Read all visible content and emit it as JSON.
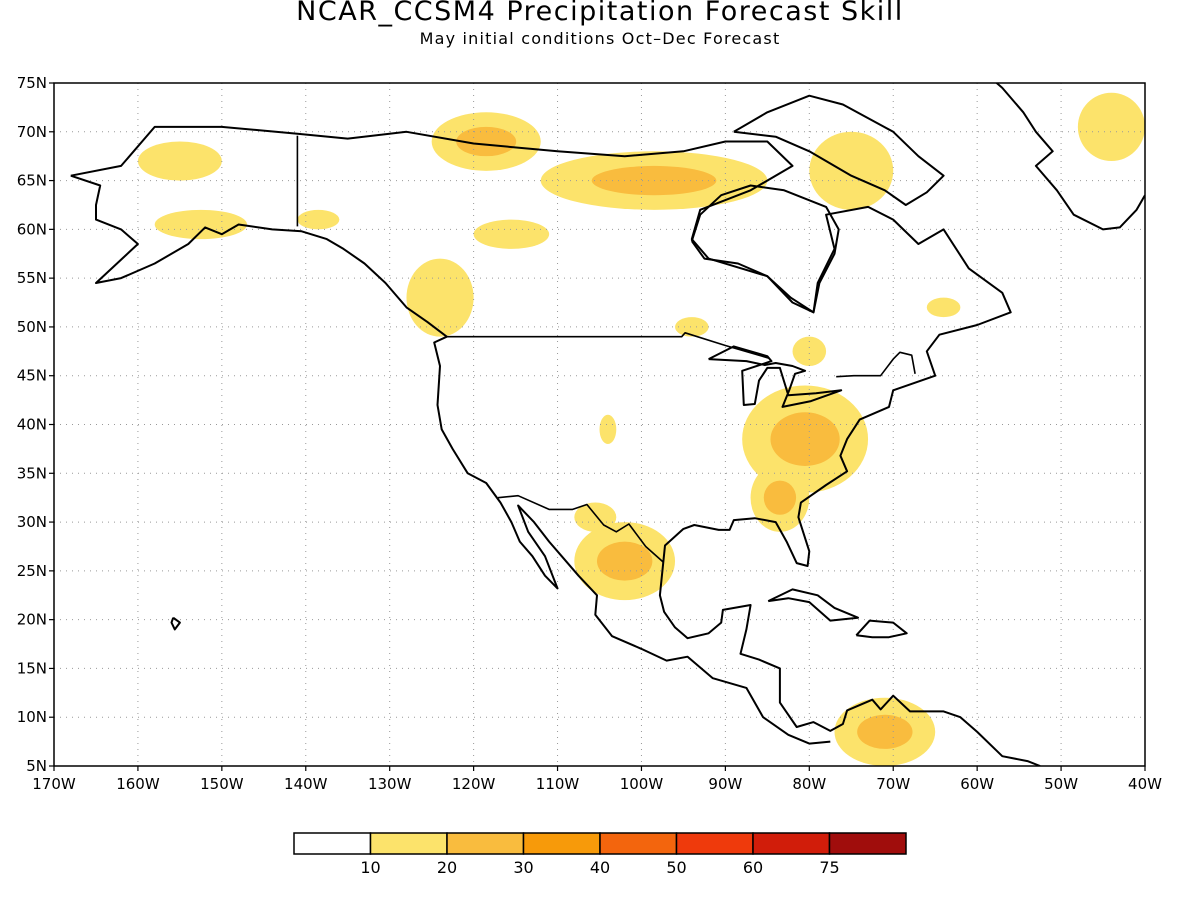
{
  "title": "NCAR_CCSM4 Precipitation Forecast Skill",
  "subtitle": "May initial conditions  Oct–Dec Forecast",
  "map": {
    "lon_range": [
      -170,
      -40
    ],
    "lat_range": [
      5,
      75
    ],
    "lon_ticks": [
      "170W",
      "160W",
      "150W",
      "140W",
      "130W",
      "120W",
      "110W",
      "100W",
      "90W",
      "80W",
      "70W",
      "60W",
      "50W",
      "40W"
    ],
    "lat_ticks": [
      "75N",
      "70N",
      "65N",
      "60N",
      "55N",
      "50N",
      "45N",
      "40N",
      "35N",
      "30N",
      "25N",
      "20N",
      "15N",
      "10N",
      "5N"
    ],
    "gridlines": "dotted",
    "legend_position": "bottom-center"
  },
  "colorbar": {
    "labels": [
      "10",
      "20",
      "30",
      "40",
      "50",
      "60",
      "75"
    ],
    "colors": [
      "#ffffff",
      "#fce36b",
      "#f9bc3e",
      "#f79a0a",
      "#f3650d",
      "#ef3a0c",
      "#d11d0a",
      "#a00d0c"
    ]
  },
  "skill_regions": [
    {
      "name": "eastern-us",
      "lon": [
        -88,
        -73
      ],
      "lat": [
        33,
        44
      ],
      "level": 2
    },
    {
      "name": "southeast-us",
      "lon": [
        -87,
        -80
      ],
      "lat": [
        29,
        36
      ],
      "level": 2
    },
    {
      "name": "northern-mexico",
      "lon": [
        -108,
        -96
      ],
      "lat": [
        22,
        30
      ],
      "level": 2
    },
    {
      "name": "arctic-canada",
      "lon": [
        -112,
        -85
      ],
      "lat": [
        62,
        68
      ],
      "level": 2
    },
    {
      "name": "greenland-east",
      "lon": [
        -48,
        -40
      ],
      "lat": [
        67,
        74
      ],
      "level": 1
    },
    {
      "name": "northern-south-america",
      "lon": [
        -77,
        -65
      ],
      "lat": [
        5,
        12
      ],
      "level": 2
    },
    {
      "name": "western-canada",
      "lon": [
        -128,
        -120
      ],
      "lat": [
        49,
        57
      ],
      "level": 1
    },
    {
      "name": "alaska-north",
      "lon": [
        -160,
        -150
      ],
      "lat": [
        65,
        69
      ],
      "level": 1
    },
    {
      "name": "alaska-south",
      "lon": [
        -158,
        -147
      ],
      "lat": [
        59,
        62
      ],
      "level": 1
    },
    {
      "name": "yukon",
      "lon": [
        -141,
        -136
      ],
      "lat": [
        60,
        62
      ],
      "level": 1
    },
    {
      "name": "northwest-territories",
      "lon": [
        -120,
        -111
      ],
      "lat": [
        58,
        61
      ],
      "level": 1
    },
    {
      "name": "baffin",
      "lon": [
        -80,
        -70
      ],
      "lat": [
        62,
        70
      ],
      "level": 1
    },
    {
      "name": "ontario",
      "lon": [
        -96,
        -92
      ],
      "lat": [
        49,
        51
      ],
      "level": 1
    },
    {
      "name": "quebec",
      "lon": [
        -82,
        -78
      ],
      "lat": [
        46,
        49
      ],
      "level": 1
    },
    {
      "name": "labrador",
      "lon": [
        -66,
        -62
      ],
      "lat": [
        51,
        53
      ],
      "level": 1
    },
    {
      "name": "arctic-islands",
      "lon": [
        -125,
        -112
      ],
      "lat": [
        66,
        72
      ],
      "level": 2
    },
    {
      "name": "colorado",
      "lon": [
        -105,
        -103
      ],
      "lat": [
        38,
        41
      ],
      "level": 1
    },
    {
      "name": "texas-west",
      "lon": [
        -108,
        -103
      ],
      "lat": [
        29,
        32
      ],
      "level": 1
    }
  ]
}
